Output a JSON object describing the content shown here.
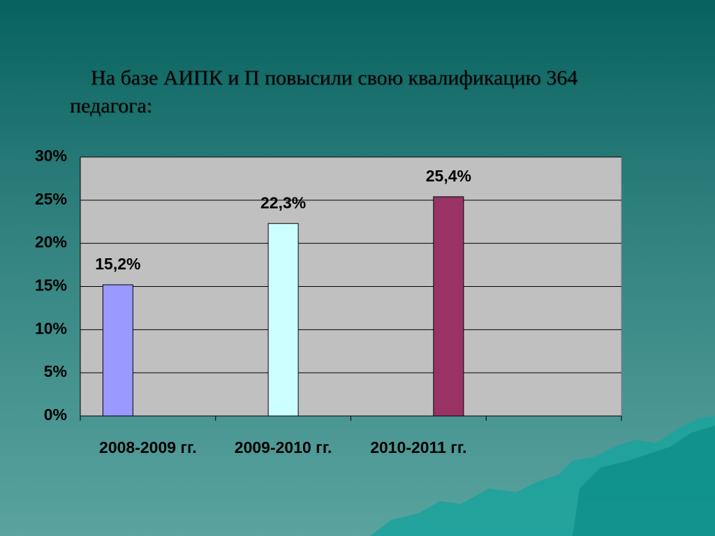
{
  "chart_data": {
    "type": "bar",
    "title": "На базе АИПК и П повысили свою квалификацию 364 педагога:",
    "categories": [
      "2008-2009 гг.",
      "2009-2010 гг.",
      "2010-2011 гг.",
      null
    ],
    "series": [
      {
        "color": "#9999ff",
        "values": [
          15.2,
          null,
          null,
          null
        ],
        "value_labels": [
          "15,2%",
          null,
          null,
          null
        ]
      },
      {
        "color": "#ccffff",
        "values": [
          null,
          22.3,
          null,
          null
        ],
        "value_labels": [
          null,
          "22,3%",
          null,
          null
        ]
      },
      {
        "color": "#993366",
        "values": [
          null,
          null,
          25.4,
          null
        ],
        "value_labels": [
          null,
          null,
          "25,4%",
          null
        ]
      }
    ],
    "ylim": [
      0,
      30
    ],
    "yticks": [
      {
        "value": 0,
        "label": "0%"
      },
      {
        "value": 5,
        "label": "5%"
      },
      {
        "value": 10,
        "label": "10%"
      },
      {
        "value": 15,
        "label": "15%"
      },
      {
        "value": 20,
        "label": "20%"
      },
      {
        "value": 25,
        "label": "25%"
      },
      {
        "value": 30,
        "label": "30%"
      }
    ],
    "grid": true
  }
}
